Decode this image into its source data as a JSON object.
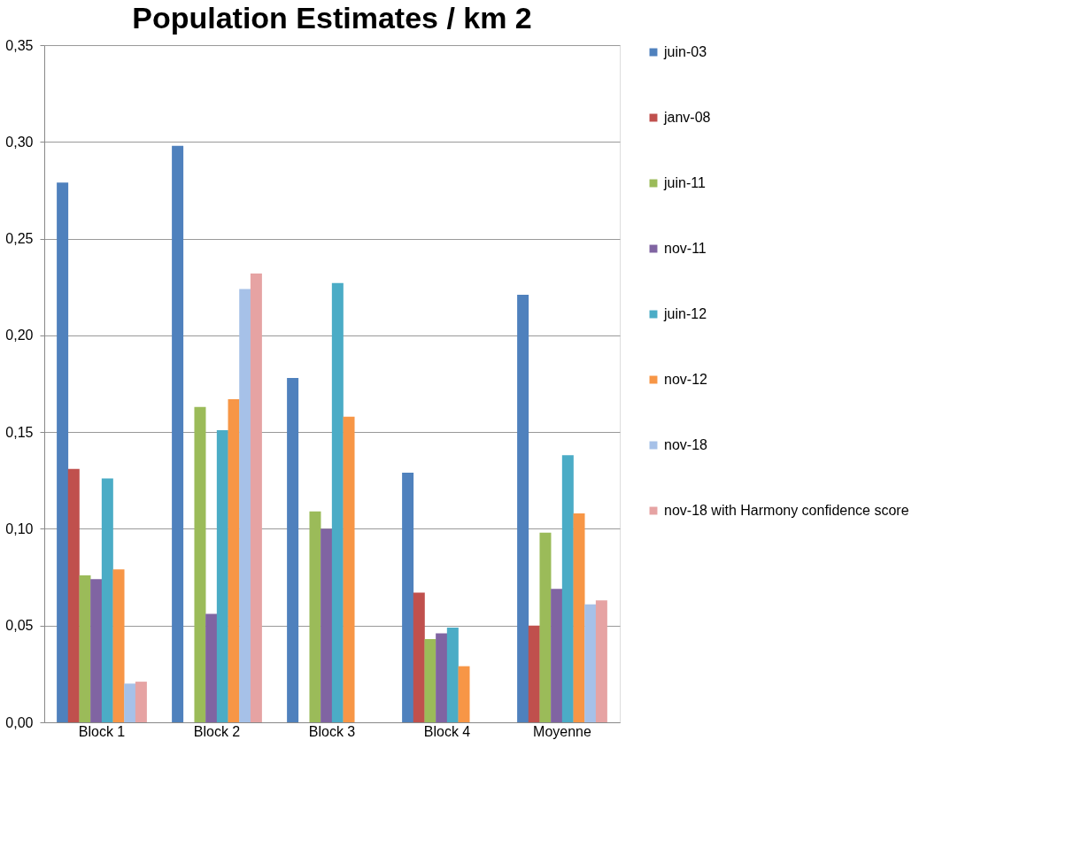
{
  "chart_data": {
    "type": "bar",
    "title": "Population Estimates / km 2",
    "categories": [
      "Block 1",
      "Block 2",
      "Block 3",
      "Block 4",
      "Moyenne"
    ],
    "series": [
      {
        "name": "juin-03",
        "color": "#4f81bd",
        "values": [
          0.279,
          0.298,
          0.178,
          0.129,
          0.221
        ]
      },
      {
        "name": "janv-08",
        "color": "#c0504d",
        "values": [
          0.131,
          null,
          null,
          0.067,
          0.05
        ]
      },
      {
        "name": "juin-11",
        "color": "#9bbb59",
        "values": [
          0.076,
          0.163,
          0.109,
          0.043,
          0.098
        ]
      },
      {
        "name": "nov-11",
        "color": "#8064a2",
        "values": [
          0.074,
          0.056,
          0.1,
          0.046,
          0.069
        ]
      },
      {
        "name": "juin-12",
        "color": "#4bacc6",
        "values": [
          0.126,
          0.151,
          0.227,
          0.049,
          0.138
        ]
      },
      {
        "name": "nov-12",
        "color": "#f79646",
        "values": [
          0.079,
          0.167,
          0.158,
          0.029,
          0.108
        ]
      },
      {
        "name": "nov-18",
        "color": "#a6c1e8",
        "values": [
          0.02,
          0.224,
          null,
          null,
          0.061
        ]
      },
      {
        "name": "nov-18 with Harmony confidence score",
        "color": "#e6a3a3",
        "values": [
          0.021,
          0.232,
          null,
          null,
          0.063
        ]
      }
    ],
    "ylim": [
      0,
      0.35
    ],
    "yticks": [
      {
        "value": 0,
        "label": "0,00"
      },
      {
        "value": 0.05,
        "label": "0,05"
      },
      {
        "value": 0.1,
        "label": "0,10"
      },
      {
        "value": 0.15,
        "label": "0,15"
      },
      {
        "value": 0.2,
        "label": "0,20"
      },
      {
        "value": 0.25,
        "label": "0,25"
      },
      {
        "value": 0.3,
        "label": "0,30"
      },
      {
        "value": 0.35,
        "label": "0,35"
      }
    ],
    "grid": "y",
    "legend": "right"
  }
}
